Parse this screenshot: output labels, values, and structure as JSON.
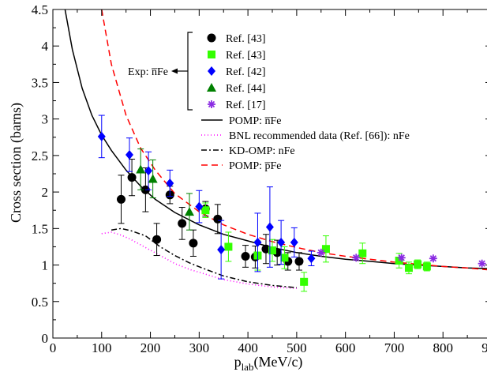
{
  "chart_data": {
    "type": "scatter",
    "xlabel": "p",
    "xlabel_sub": "lab",
    "xlabel_unit": "(MeV/c)",
    "ylabel": "Cross section (barns)",
    "xlim": [
      0,
      900
    ],
    "ylim": [
      0,
      4.5
    ],
    "x_ticks": [
      "0",
      "100",
      "200",
      "300",
      "400",
      "500",
      "600",
      "700",
      "800",
      "900"
    ],
    "y_ticks": [
      "0",
      "0.5",
      "1",
      "1.5",
      "2",
      "2.5",
      "3",
      "3.5",
      "4",
      "4.5"
    ],
    "grid": false,
    "legend_position": "top-right",
    "exp_group_label": "Exp: n̅Fe",
    "series": [
      {
        "name": "Ref. [43]",
        "marker": "circle",
        "color": "#000000",
        "points": [
          {
            "x": 140,
            "y": 1.9,
            "err": 0.33
          },
          {
            "x": 162,
            "y": 2.2,
            "err": 0.25
          },
          {
            "x": 190,
            "y": 2.03,
            "err": 0.3
          },
          {
            "x": 213,
            "y": 1.35,
            "err": 0.22
          },
          {
            "x": 240,
            "y": 1.96,
            "err": 0.12
          },
          {
            "x": 265,
            "y": 1.57,
            "err": 0.22
          },
          {
            "x": 288,
            "y": 1.3,
            "err": 0.18
          },
          {
            "x": 313,
            "y": 1.77,
            "err": 0.1
          },
          {
            "x": 338,
            "y": 1.63,
            "err": 0.2
          },
          {
            "x": 395,
            "y": 1.12,
            "err": 0.15
          },
          {
            "x": 415,
            "y": 1.11,
            "err": 0.15
          },
          {
            "x": 437,
            "y": 1.22,
            "err": 0.2
          },
          {
            "x": 460,
            "y": 1.17,
            "err": 0.17
          },
          {
            "x": 482,
            "y": 1.05,
            "err": 0.12
          },
          {
            "x": 505,
            "y": 1.05,
            "err": 0.12
          }
        ]
      },
      {
        "name": "Ref. [43]",
        "marker": "square",
        "color": "#33ff00",
        "points": [
          {
            "x": 313,
            "y": 1.75,
            "err": 0.1
          },
          {
            "x": 360,
            "y": 1.25,
            "err": 0.2
          },
          {
            "x": 420,
            "y": 1.13,
            "err": 0.2
          },
          {
            "x": 450,
            "y": 1.2,
            "err": 0.15
          },
          {
            "x": 475,
            "y": 1.1,
            "err": 0.15
          },
          {
            "x": 515,
            "y": 0.77,
            "err": 0.13
          },
          {
            "x": 560,
            "y": 1.22,
            "err": 0.18
          },
          {
            "x": 635,
            "y": 1.16,
            "err": 0.14
          },
          {
            "x": 710,
            "y": 1.06,
            "err": 0.1
          },
          {
            "x": 730,
            "y": 0.96,
            "err": 0.08
          },
          {
            "x": 748,
            "y": 1.01,
            "err": 0.06
          },
          {
            "x": 767,
            "y": 0.98,
            "err": 0.06
          }
        ]
      },
      {
        "name": "Ref. [42]",
        "marker": "diamond",
        "color": "#0000ff",
        "points": [
          {
            "x": 100,
            "y": 2.76,
            "err": 0.29
          },
          {
            "x": 157,
            "y": 2.51,
            "err": 0.23
          },
          {
            "x": 196,
            "y": 2.29,
            "err": 0.26
          },
          {
            "x": 240,
            "y": 2.12,
            "err": 0.18
          },
          {
            "x": 300,
            "y": 1.8,
            "err": 0.22
          },
          {
            "x": 345,
            "y": 1.21,
            "err": 0.4
          },
          {
            "x": 420,
            "y": 1.31,
            "err": 0.4
          },
          {
            "x": 445,
            "y": 1.52,
            "err": 0.55
          },
          {
            "x": 468,
            "y": 1.31,
            "err": 0.3
          },
          {
            "x": 495,
            "y": 1.31,
            "err": 0.2
          },
          {
            "x": 530,
            "y": 1.09,
            "err": 0.1
          }
        ]
      },
      {
        "name": "Ref. [44]",
        "marker": "triangle",
        "color": "#008000",
        "points": [
          {
            "x": 180,
            "y": 2.31,
            "err": 0.28
          },
          {
            "x": 205,
            "y": 2.18,
            "err": 0.26
          },
          {
            "x": 280,
            "y": 1.73,
            "err": 0.25
          }
        ]
      },
      {
        "name": "Ref. [17]",
        "marker": "asterisk",
        "color": "#8a2be2",
        "points": [
          {
            "x": 550,
            "y": 1.17
          },
          {
            "x": 622,
            "y": 1.1
          },
          {
            "x": 715,
            "y": 1.1
          },
          {
            "x": 780,
            "y": 1.09
          },
          {
            "x": 880,
            "y": 1.02
          }
        ]
      }
    ],
    "curves": [
      {
        "name": "POMP: n̅Fe",
        "color": "#000000",
        "dash": "none",
        "x": [
          25,
          40,
          60,
          80,
          100,
          120,
          150,
          180,
          210,
          250,
          300,
          350,
          400,
          450,
          500,
          550,
          600,
          650,
          700,
          750,
          800,
          850,
          900
        ],
        "y": [
          4.5,
          3.95,
          3.42,
          3.05,
          2.78,
          2.57,
          2.3,
          2.08,
          1.9,
          1.72,
          1.55,
          1.42,
          1.33,
          1.24,
          1.17,
          1.12,
          1.08,
          1.05,
          1.02,
          1.0,
          0.98,
          0.96,
          0.95
        ]
      },
      {
        "name": "BNL recommended data (Ref. [66]): nFe",
        "color": "#ff00ff",
        "dash": "1,3",
        "x": [
          100,
          120,
          140,
          160,
          190,
          220,
          250,
          280,
          310,
          350,
          400,
          450,
          500
        ],
        "y": [
          1.43,
          1.45,
          1.41,
          1.35,
          1.24,
          1.13,
          1.02,
          0.94,
          0.88,
          0.8,
          0.74,
          0.7,
          0.68
        ]
      },
      {
        "name": "KD-OMP: nFe",
        "color": "#000000",
        "dash": "7,3,2,3",
        "x": [
          120,
          140,
          160,
          190,
          220,
          250,
          280,
          310,
          350,
          400,
          450,
          500
        ],
        "y": [
          1.48,
          1.5,
          1.47,
          1.4,
          1.25,
          1.13,
          1.03,
          0.95,
          0.85,
          0.77,
          0.72,
          0.69
        ]
      },
      {
        "name": "POMP: p̅Fe",
        "color": "#ff0000",
        "dash": "8,5",
        "x": [
          100,
          120,
          150,
          180,
          210,
          250,
          300,
          350,
          400,
          450,
          500,
          550,
          600,
          650,
          700,
          750,
          800,
          850,
          900
        ],
        "y": [
          4.5,
          3.75,
          3.05,
          2.6,
          2.3,
          1.98,
          1.73,
          1.55,
          1.42,
          1.32,
          1.24,
          1.17,
          1.12,
          1.08,
          1.04,
          1.01,
          0.98,
          0.96,
          0.93
        ]
      }
    ]
  }
}
